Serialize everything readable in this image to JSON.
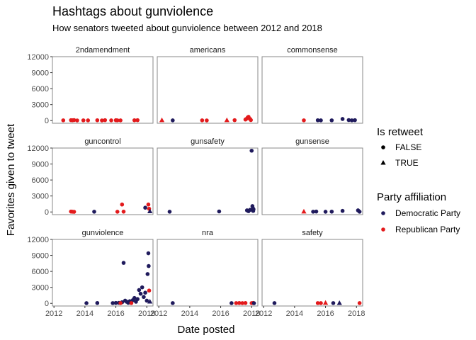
{
  "chart_data": {
    "type": "scatter",
    "title": "Hashtags about gunviolence",
    "subtitle": "How senators tweeted about gunviolence between 2012 and 2018",
    "xlabel": "Date posted",
    "ylabel": "Favorites given to tweet",
    "xlim": [
      2011.9,
      2018.4
    ],
    "ylim": [
      -500,
      12000
    ],
    "x_ticks": [
      "2012",
      "2014",
      "2016",
      "2018"
    ],
    "y_ticks": [
      "0",
      "3000",
      "6000",
      "9000",
      "12000"
    ],
    "grid": false,
    "legend_placement": "right",
    "legend": {
      "shape_title": "Is retweet",
      "shape_entries": [
        "FALSE",
        "TRUE"
      ],
      "color_title": "Party affiliation",
      "color_entries": [
        "Democratic Party",
        "Republican Party"
      ]
    },
    "colors": {
      "Democratic Party": "#1f1a5c",
      "Republican Party": "#e31a1c"
    },
    "panels": [
      {
        "name": "2ndamendment",
        "points": [
          {
            "x": 2012.6,
            "y": 50,
            "p": "R",
            "rt": false
          },
          {
            "x": 2013.1,
            "y": 80,
            "p": "R",
            "rt": false
          },
          {
            "x": 2013.2,
            "y": 60,
            "p": "R",
            "rt": false
          },
          {
            "x": 2013.3,
            "y": 100,
            "p": "R",
            "rt": false
          },
          {
            "x": 2013.5,
            "y": 30,
            "p": "R",
            "rt": false
          },
          {
            "x": 2013.9,
            "y": 50,
            "p": "R",
            "rt": false
          },
          {
            "x": 2014.2,
            "y": 40,
            "p": "R",
            "rt": false
          },
          {
            "x": 2014.8,
            "y": 60,
            "p": "R",
            "rt": false
          },
          {
            "x": 2015.1,
            "y": 30,
            "p": "R",
            "rt": false
          },
          {
            "x": 2015.3,
            "y": 80,
            "p": "R",
            "rt": false
          },
          {
            "x": 2015.7,
            "y": 40,
            "p": "R",
            "rt": false
          },
          {
            "x": 2016.0,
            "y": 70,
            "p": "R",
            "rt": false
          },
          {
            "x": 2016.1,
            "y": 50,
            "p": "R",
            "rt": false
          },
          {
            "x": 2016.3,
            "y": 40,
            "p": "R",
            "rt": false
          },
          {
            "x": 2017.2,
            "y": 60,
            "p": "R",
            "rt": false
          },
          {
            "x": 2017.4,
            "y": 80,
            "p": "R",
            "rt": false
          }
        ]
      },
      {
        "name": "americans",
        "points": [
          {
            "x": 2012.2,
            "y": 50,
            "p": "R",
            "rt": true
          },
          {
            "x": 2012.9,
            "y": 40,
            "p": "D",
            "rt": false
          },
          {
            "x": 2014.8,
            "y": 50,
            "p": "R",
            "rt": false
          },
          {
            "x": 2015.1,
            "y": 30,
            "p": "R",
            "rt": false
          },
          {
            "x": 2016.4,
            "y": 50,
            "p": "R",
            "rt": true
          },
          {
            "x": 2016.9,
            "y": 80,
            "p": "R",
            "rt": false
          },
          {
            "x": 2017.6,
            "y": 200,
            "p": "R",
            "rt": false
          },
          {
            "x": 2017.7,
            "y": 400,
            "p": "R",
            "rt": false
          },
          {
            "x": 2017.75,
            "y": 600,
            "p": "R",
            "rt": false
          },
          {
            "x": 2017.8,
            "y": 700,
            "p": "R",
            "rt": false
          },
          {
            "x": 2017.9,
            "y": 300,
            "p": "R",
            "rt": false
          },
          {
            "x": 2017.95,
            "y": 100,
            "p": "R",
            "rt": false
          }
        ]
      },
      {
        "name": "commonsense",
        "points": [
          {
            "x": 2014.6,
            "y": 50,
            "p": "R",
            "rt": false
          },
          {
            "x": 2015.5,
            "y": 60,
            "p": "D",
            "rt": false
          },
          {
            "x": 2015.7,
            "y": 40,
            "p": "D",
            "rt": false
          },
          {
            "x": 2016.4,
            "y": 50,
            "p": "D",
            "rt": false
          },
          {
            "x": 2017.1,
            "y": 300,
            "p": "D",
            "rt": false
          },
          {
            "x": 2017.5,
            "y": 100,
            "p": "D",
            "rt": false
          },
          {
            "x": 2017.7,
            "y": 50,
            "p": "D",
            "rt": false
          },
          {
            "x": 2017.9,
            "y": 80,
            "p": "D",
            "rt": false
          }
        ]
      },
      {
        "name": "guncontrol",
        "points": [
          {
            "x": 2013.1,
            "y": 80,
            "p": "R",
            "rt": false
          },
          {
            "x": 2013.2,
            "y": 50,
            "p": "R",
            "rt": false
          },
          {
            "x": 2013.3,
            "y": 30,
            "p": "R",
            "rt": false
          },
          {
            "x": 2014.6,
            "y": 50,
            "p": "D",
            "rt": false
          },
          {
            "x": 2016.1,
            "y": 40,
            "p": "R",
            "rt": false
          },
          {
            "x": 2016.4,
            "y": 1400,
            "p": "R",
            "rt": false
          },
          {
            "x": 2016.5,
            "y": 60,
            "p": "R",
            "rt": false
          },
          {
            "x": 2017.9,
            "y": 800,
            "p": "D",
            "rt": false
          },
          {
            "x": 2018.1,
            "y": 1400,
            "p": "R",
            "rt": false
          },
          {
            "x": 2018.15,
            "y": 600,
            "p": "R",
            "rt": false
          },
          {
            "x": 2018.2,
            "y": 100,
            "p": "D",
            "rt": true
          }
        ]
      },
      {
        "name": "gunsafety",
        "points": [
          {
            "x": 2012.7,
            "y": 50,
            "p": "D",
            "rt": false
          },
          {
            "x": 2015.9,
            "y": 100,
            "p": "D",
            "rt": false
          },
          {
            "x": 2017.7,
            "y": 300,
            "p": "D",
            "rt": false
          },
          {
            "x": 2017.8,
            "y": 150,
            "p": "D",
            "rt": false
          },
          {
            "x": 2017.9,
            "y": 400,
            "p": "D",
            "rt": false
          },
          {
            "x": 2018.0,
            "y": 11500,
            "p": "D",
            "rt": false
          },
          {
            "x": 2018.05,
            "y": 1100,
            "p": "D",
            "rt": false
          },
          {
            "x": 2018.08,
            "y": 700,
            "p": "D",
            "rt": false
          },
          {
            "x": 2018.1,
            "y": 200,
            "p": "D",
            "rt": false
          },
          {
            "x": 2018.12,
            "y": 500,
            "p": "D",
            "rt": false
          }
        ]
      },
      {
        "name": "gunsense",
        "points": [
          {
            "x": 2014.6,
            "y": 50,
            "p": "R",
            "rt": true
          },
          {
            "x": 2015.2,
            "y": 50,
            "p": "D",
            "rt": false
          },
          {
            "x": 2015.4,
            "y": 80,
            "p": "D",
            "rt": false
          },
          {
            "x": 2016.0,
            "y": 40,
            "p": "D",
            "rt": false
          },
          {
            "x": 2016.4,
            "y": 60,
            "p": "D",
            "rt": false
          },
          {
            "x": 2017.1,
            "y": 200,
            "p": "D",
            "rt": false
          },
          {
            "x": 2018.1,
            "y": 300,
            "p": "D",
            "rt": false
          },
          {
            "x": 2018.2,
            "y": 50,
            "p": "D",
            "rt": false
          }
        ]
      },
      {
        "name": "gunviolence",
        "points": [
          {
            "x": 2014.1,
            "y": 40,
            "p": "D",
            "rt": false
          },
          {
            "x": 2014.8,
            "y": 60,
            "p": "D",
            "rt": false
          },
          {
            "x": 2015.8,
            "y": 50,
            "p": "D",
            "rt": false
          },
          {
            "x": 2016.0,
            "y": 80,
            "p": "D",
            "rt": false
          },
          {
            "x": 2016.2,
            "y": 100,
            "p": "D",
            "rt": false
          },
          {
            "x": 2016.4,
            "y": 200,
            "p": "D",
            "rt": false
          },
          {
            "x": 2016.5,
            "y": 7600,
            "p": "D",
            "rt": false
          },
          {
            "x": 2016.6,
            "y": 500,
            "p": "D",
            "rt": false
          },
          {
            "x": 2016.7,
            "y": 300,
            "p": "D",
            "rt": false
          },
          {
            "x": 2016.8,
            "y": 100,
            "p": "D",
            "rt": false
          },
          {
            "x": 2016.9,
            "y": 400,
            "p": "D",
            "rt": false
          },
          {
            "x": 2017.0,
            "y": 200,
            "p": "D",
            "rt": false
          },
          {
            "x": 2017.1,
            "y": 600,
            "p": "D",
            "rt": false
          },
          {
            "x": 2017.2,
            "y": 1000,
            "p": "D",
            "rt": false
          },
          {
            "x": 2017.3,
            "y": 300,
            "p": "D",
            "rt": false
          },
          {
            "x": 2017.4,
            "y": 800,
            "p": "D",
            "rt": false
          },
          {
            "x": 2017.5,
            "y": 2500,
            "p": "D",
            "rt": false
          },
          {
            "x": 2017.6,
            "y": 1800,
            "p": "D",
            "rt": false
          },
          {
            "x": 2017.7,
            "y": 3000,
            "p": "D",
            "rt": false
          },
          {
            "x": 2017.8,
            "y": 1200,
            "p": "D",
            "rt": false
          },
          {
            "x": 2017.9,
            "y": 2000,
            "p": "D",
            "rt": false
          },
          {
            "x": 2018.0,
            "y": 500,
            "p": "D",
            "rt": false
          },
          {
            "x": 2018.05,
            "y": 5500,
            "p": "D",
            "rt": false
          },
          {
            "x": 2018.1,
            "y": 9400,
            "p": "D",
            "rt": false
          },
          {
            "x": 2018.12,
            "y": 7000,
            "p": "D",
            "rt": false
          },
          {
            "x": 2018.15,
            "y": 2400,
            "p": "R",
            "rt": false
          },
          {
            "x": 2018.2,
            "y": 300,
            "p": "D",
            "rt": true
          },
          {
            "x": 2016.3,
            "y": 50,
            "p": "R",
            "rt": false
          },
          {
            "x": 2017.0,
            "y": 50,
            "p": "R",
            "rt": false
          }
        ]
      },
      {
        "name": "nra",
        "points": [
          {
            "x": 2012.9,
            "y": 50,
            "p": "D",
            "rt": false
          },
          {
            "x": 2016.7,
            "y": 40,
            "p": "D",
            "rt": false
          },
          {
            "x": 2017.0,
            "y": 50,
            "p": "R",
            "rt": false
          },
          {
            "x": 2017.2,
            "y": 60,
            "p": "R",
            "rt": false
          },
          {
            "x": 2017.4,
            "y": 40,
            "p": "R",
            "rt": false
          },
          {
            "x": 2017.6,
            "y": 60,
            "p": "R",
            "rt": false
          },
          {
            "x": 2018.0,
            "y": 50,
            "p": "R",
            "rt": false
          },
          {
            "x": 2018.1,
            "y": 80,
            "p": "R",
            "rt": false
          },
          {
            "x": 2018.15,
            "y": 30,
            "p": "D",
            "rt": false
          }
        ]
      },
      {
        "name": "safety",
        "points": [
          {
            "x": 2012.7,
            "y": 50,
            "p": "D",
            "rt": false
          },
          {
            "x": 2015.5,
            "y": 50,
            "p": "R",
            "rt": false
          },
          {
            "x": 2015.7,
            "y": 40,
            "p": "R",
            "rt": false
          },
          {
            "x": 2016.0,
            "y": 60,
            "p": "R",
            "rt": true
          },
          {
            "x": 2016.5,
            "y": 50,
            "p": "D",
            "rt": false
          },
          {
            "x": 2016.9,
            "y": 40,
            "p": "D",
            "rt": true
          },
          {
            "x": 2018.2,
            "y": 50,
            "p": "R",
            "rt": false
          }
        ]
      }
    ]
  }
}
